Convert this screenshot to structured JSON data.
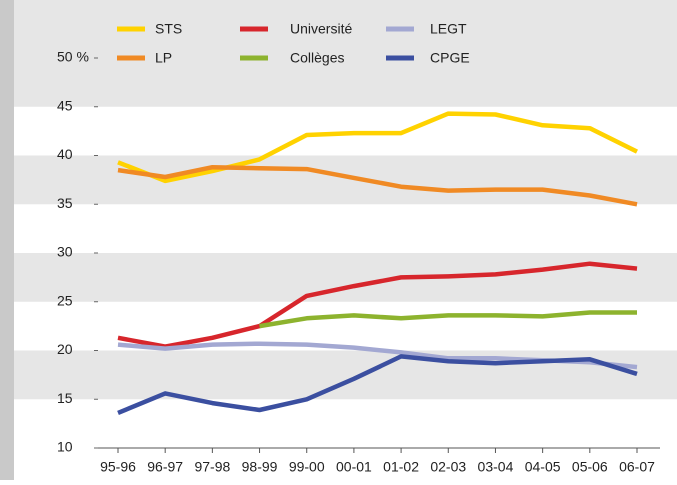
{
  "chart_data": {
    "type": "line",
    "categories": [
      "95-96",
      "96-97",
      "97-98",
      "98-99",
      "99-00",
      "00-01",
      "01-02",
      "02-03",
      "03-04",
      "04-05",
      "05-06",
      "06-07"
    ],
    "series": [
      {
        "name": "STS",
        "color": "#ffd200",
        "values": [
          39.3,
          37.4,
          38.4,
          39.6,
          42.1,
          42.3,
          42.3,
          44.3,
          44.2,
          43.1,
          42.8,
          40.4
        ]
      },
      {
        "name": "LP",
        "color": "#f08a24",
        "values": [
          38.5,
          37.8,
          38.8,
          38.7,
          38.6,
          37.7,
          36.8,
          36.4,
          36.5,
          36.5,
          35.9,
          35.0
        ]
      },
      {
        "name": "Université",
        "color": "#d7262c",
        "values": [
          21.3,
          20.4,
          21.3,
          22.5,
          25.6,
          26.6,
          27.5,
          27.6,
          27.8,
          28.3,
          28.9,
          28.4
        ]
      },
      {
        "name": "Collèges",
        "color": "#8db32e",
        "values": [
          null,
          null,
          null,
          22.5,
          23.3,
          23.6,
          23.3,
          23.6,
          23.6,
          23.5,
          23.9,
          23.9
        ]
      },
      {
        "name": "LEGT",
        "color": "#a3a8d2",
        "values": [
          20.6,
          20.2,
          20.6,
          20.7,
          20.6,
          20.3,
          19.8,
          19.2,
          19.2,
          19.0,
          18.8,
          18.3
        ]
      },
      {
        "name": "CPGE",
        "color": "#3b4fa0",
        "values": [
          13.6,
          15.6,
          14.6,
          13.9,
          15.0,
          17.1,
          19.4,
          18.9,
          18.7,
          18.9,
          19.1,
          17.6
        ]
      }
    ],
    "ylim": [
      10,
      50
    ],
    "yticks": [
      {
        "value": 50,
        "label": "50 %"
      },
      45,
      40,
      35,
      30,
      25,
      20,
      15,
      10
    ],
    "bands": true
  }
}
